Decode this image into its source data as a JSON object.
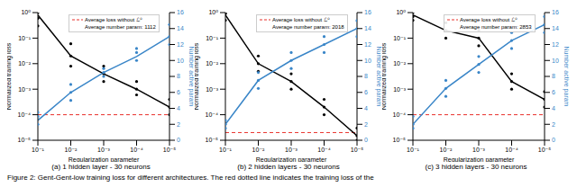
{
  "chart_data": [
    {
      "type": "line",
      "subtitle": "(a) 1 hidden layer - 30 neurons",
      "x_label": "Regularization parameter",
      "y_label": "Normalized training loss",
      "y2_label": "Number active param",
      "log": true,
      "grid": false,
      "x": [
        0.1,
        0.01,
        0.001,
        0.0001,
        1e-05
      ],
      "xlim": [
        0.1,
        1e-05
      ],
      "xticks": [
        {
          "value": 0.1,
          "label": "10⁻¹"
        },
        {
          "value": 0.01,
          "label": "10⁻²"
        },
        {
          "value": 0.001,
          "label": "10⁻³"
        },
        {
          "value": 0.0001,
          "label": "10⁻⁴"
        },
        {
          "value": 1e-05,
          "label": "10⁻⁵"
        }
      ],
      "ylim": [
        1e-05,
        1
      ],
      "yticks": [
        {
          "value": 1e-05,
          "label": "10⁻⁵"
        },
        {
          "value": 0.0001,
          "label": "10⁻⁴"
        },
        {
          "value": 0.001,
          "label": "10⁻³"
        },
        {
          "value": 0.01,
          "label": "10⁻²"
        },
        {
          "value": 0.1,
          "label": "10⁻¹"
        },
        {
          "value": 1,
          "label": "10⁰"
        }
      ],
      "y2lim": [
        0,
        16
      ],
      "y2ticks": [
        0,
        2,
        4,
        6,
        8,
        10,
        12,
        14,
        16
      ],
      "series": [
        {
          "color": "#000000",
          "marker": "circle",
          "values": [
            0.8,
            0.02,
            0.004,
            0.001,
            0.0002
          ],
          "runs": [
            [
              1,
              0.6,
              0.3
            ],
            [
              0.06,
              0.02,
              0.008
            ],
            [
              0.008,
              0.004,
              0.002
            ],
            [
              0.002,
              0.001,
              0.0006
            ],
            [
              0.0004,
              0.0002,
              0.0001
            ]
          ]
        },
        {
          "color": "#3a86c8",
          "marker": "circle",
          "axis": "y2",
          "values": [
            2.5,
            6,
            8.5,
            10.5,
            13
          ],
          "runs": [
            [
              2,
              3,
              3.5
            ],
            [
              5,
              6,
              7
            ],
            [
              8,
              8.5,
              9
            ],
            [
              10,
              11,
              11.5
            ],
            [
              12,
              13,
              14.5
            ]
          ]
        }
      ],
      "baseline": {
        "label": "Average loss without ℒ⁰",
        "value": 0.0001,
        "color": "#e8302a",
        "line_style": "dashed"
      },
      "note": "Average number param: 1112",
      "legend": "upper center"
    },
    {
      "type": "line",
      "subtitle": "(b) 2 hidden layers - 30 neurons",
      "x_label": "Regularization parameter",
      "y_label": "Normalized training loss",
      "y2_label": "Number active param",
      "log": true,
      "grid": false,
      "x": [
        0.1,
        0.01,
        0.001,
        0.0001,
        1e-05
      ],
      "xlim": [
        0.1,
        1e-05
      ],
      "xticks": [
        {
          "value": 0.1,
          "label": "10⁻¹"
        },
        {
          "value": 0.01,
          "label": "10⁻²"
        },
        {
          "value": 0.001,
          "label": "10⁻³"
        },
        {
          "value": 0.0001,
          "label": "10⁻⁴"
        },
        {
          "value": 1e-05,
          "label": "10⁻⁵"
        }
      ],
      "ylim": [
        1e-05,
        1
      ],
      "yticks": [
        {
          "value": 1e-05,
          "label": "10⁻⁵"
        },
        {
          "value": 0.0001,
          "label": "10⁻⁴"
        },
        {
          "value": 0.001,
          "label": "10⁻³"
        },
        {
          "value": 0.01,
          "label": "10⁻²"
        },
        {
          "value": 0.1,
          "label": "10⁻¹"
        },
        {
          "value": 1,
          "label": "10⁰"
        }
      ],
      "y2lim": [
        0,
        16
      ],
      "y2ticks": [
        0,
        2,
        4,
        6,
        8,
        10,
        12,
        14,
        16
      ],
      "series": [
        {
          "color": "#000000",
          "marker": "circle",
          "values": [
            0.8,
            0.01,
            0.002,
            0.0002,
            1.5e-05
          ],
          "runs": [
            [
              1,
              0.5,
              0.9
            ],
            [
              0.02,
              0.01,
              0.005
            ],
            [
              0.004,
              0.002,
              0.001
            ],
            [
              0.0004,
              0.0002,
              0.0001
            ],
            [
              3e-05,
              1.5e-05,
              1e-05
            ]
          ]
        },
        {
          "color": "#3a86c8",
          "marker": "circle",
          "axis": "y2",
          "values": [
            2,
            7.5,
            10,
            12,
            14
          ],
          "runs": [
            [
              1.5,
              2,
              2.5
            ],
            [
              6.5,
              7.5,
              8.5
            ],
            [
              9,
              10,
              11
            ],
            [
              11,
              12,
              13
            ],
            [
              13,
              14,
              15
            ]
          ]
        }
      ],
      "baseline": {
        "label": "Average loss without ℒ⁰",
        "value": 2e-05,
        "color": "#e8302a",
        "line_style": "dashed"
      },
      "note": "Average number param: 2018",
      "legend": "upper center"
    },
    {
      "type": "line",
      "subtitle": "(c) 3 hidden layers - 30 neurons",
      "x_label": "Regularization parameter",
      "y_label": "Normalized training loss",
      "y2_label": "Number active param",
      "log": true,
      "grid": false,
      "x": [
        0.1,
        0.01,
        0.001,
        0.0001,
        1e-05
      ],
      "xlim": [
        0.1,
        1e-05
      ],
      "xticks": [
        {
          "value": 0.1,
          "label": "10⁻¹"
        },
        {
          "value": 0.01,
          "label": "10⁻²"
        },
        {
          "value": 0.001,
          "label": "10⁻³"
        },
        {
          "value": 0.0001,
          "label": "10⁻⁴"
        },
        {
          "value": 1e-05,
          "label": "10⁻⁵"
        }
      ],
      "ylim": [
        1e-05,
        1
      ],
      "yticks": [
        {
          "value": 1e-05,
          "label": "10⁻⁵"
        },
        {
          "value": 0.0001,
          "label": "10⁻⁴"
        },
        {
          "value": 0.001,
          "label": "10⁻³"
        },
        {
          "value": 0.01,
          "label": "10⁻²"
        },
        {
          "value": 0.1,
          "label": "10⁻¹"
        },
        {
          "value": 1,
          "label": "10⁰"
        }
      ],
      "y2lim": [
        0,
        16
      ],
      "y2ticks": [
        0,
        2,
        4,
        6,
        8,
        10,
        12,
        14,
        16
      ],
      "series": [
        {
          "color": "#000000",
          "marker": "circle",
          "values": [
            0.8,
            0.2,
            0.1,
            0.002,
            0.0004
          ],
          "runs": [
            [
              1,
              0.7,
              0.5
            ],
            [
              0.4,
              0.2,
              0.1
            ],
            [
              0.2,
              0.1,
              0.05
            ],
            [
              0.004,
              0.002,
              0.001
            ],
            [
              0.0008,
              0.0004,
              0.0002
            ]
          ]
        },
        {
          "color": "#3a86c8",
          "marker": "circle",
          "axis": "y2",
          "values": [
            2,
            6.5,
            9.5,
            12.5,
            14.5
          ],
          "runs": [
            [
              1.5,
              2,
              3
            ],
            [
              5.5,
              6.5,
              7.5
            ],
            [
              8.5,
              9.5,
              10.5
            ],
            [
              11.5,
              12.5,
              13.5
            ],
            [
              13.5,
              14.5,
              15.5
            ]
          ]
        }
      ],
      "baseline": {
        "label": "Average loss without ℒ⁰",
        "value": 0.0001,
        "color": "#e8302a",
        "line_style": "dashed"
      },
      "note": "Average number param: 2853",
      "legend": "upper center"
    }
  ],
  "caption": "Figure 2: Gent-Gent-low training loss for different architectures. The red dotted line indicates the training loss of the"
}
